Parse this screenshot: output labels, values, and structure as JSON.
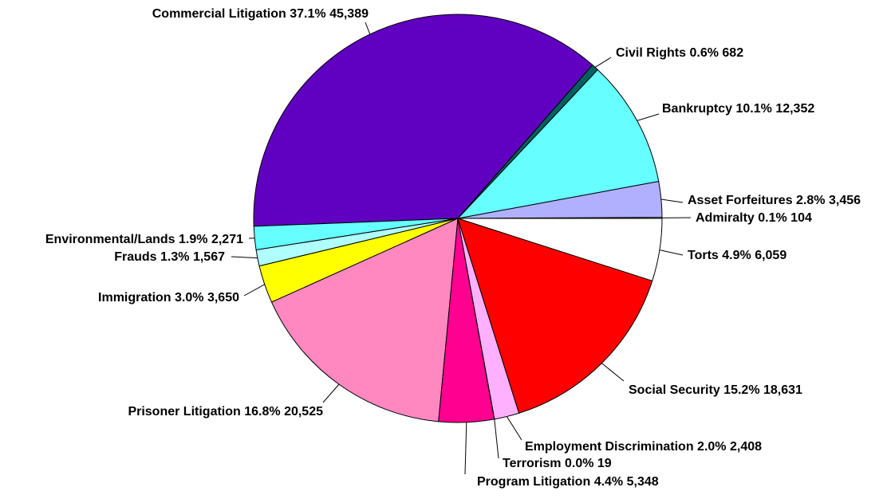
{
  "chart_data": {
    "type": "pie",
    "categories": [
      "Admiralty",
      "Asset Forfeitures",
      "Bankruptcy",
      "Civil Rights",
      "Commercial Litigation",
      "Environmental/Lands",
      "Frauds",
      "Immigration",
      "Prisoner Litigation",
      "Program Litigation",
      "Terrorism",
      "Employment Discrimination",
      "Social Security",
      "Torts"
    ],
    "values": [
      104,
      3456,
      12352,
      682,
      45389,
      2271,
      1567,
      3650,
      20525,
      5348,
      19,
      2408,
      18631,
      6059
    ],
    "value_labels": [
      "104",
      "3,456",
      "12,352",
      "682",
      "45,389",
      "2,271",
      "1,567",
      "3,650",
      "20,525",
      "5,348",
      "19",
      "2,408",
      "18,631",
      "6,059"
    ],
    "percent_labels": [
      "0.1%",
      "2.8%",
      "10.1%",
      "0.6%",
      "37.1%",
      "1.9%",
      "1.3%",
      "3.0%",
      "16.8%",
      "4.4%",
      "0.0%",
      "2.0%",
      "15.2%",
      "4.9%"
    ],
    "colors": [
      "#ffffff",
      "#b0b0ff",
      "#66ffff",
      "#006060",
      "#6000c0",
      "#66ffff",
      "#b0ffff",
      "#ffff00",
      "#ff88c0",
      "#ff0090",
      "#ff0090",
      "#ffb0ff",
      "#ff0000",
      "#ffffff"
    ]
  }
}
